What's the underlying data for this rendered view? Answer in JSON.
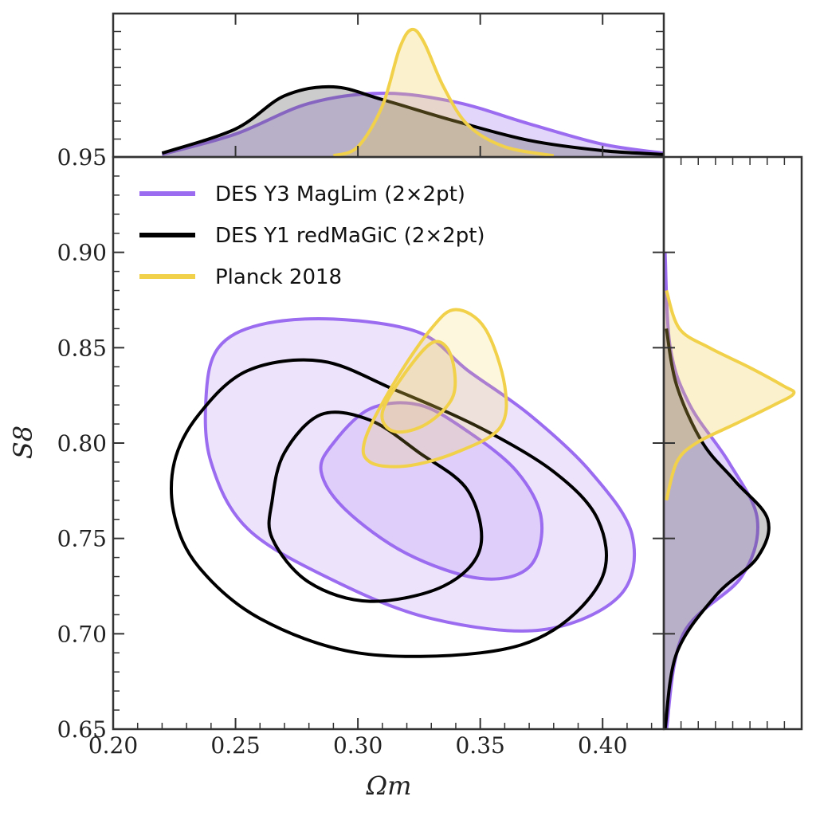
{
  "chart_data": {
    "type": "contour",
    "xlabel": "Ωm",
    "ylabel": "S8",
    "xlim": [
      0.2,
      0.425
    ],
    "ylim": [
      0.65,
      0.95
    ],
    "xticks": [
      "0.20",
      "0.25",
      "0.30",
      "0.35",
      "0.40"
    ],
    "yticks": [
      "0.65",
      "0.70",
      "0.75",
      "0.80",
      "0.85",
      "0.90",
      "0.95"
    ],
    "grid": false,
    "legend_position": "top-left",
    "series": [
      {
        "name": "DES Y3 MagLim (2×2pt)",
        "color": "#9b6cf0",
        "filled": true,
        "contours": [
          [
            [
              0.243,
              0.85
            ],
            [
              0.26,
              0.862
            ],
            [
              0.29,
              0.865
            ],
            [
              0.325,
              0.858
            ],
            [
              0.345,
              0.838
            ],
            [
              0.37,
              0.815
            ],
            [
              0.395,
              0.785
            ],
            [
              0.412,
              0.752
            ],
            [
              0.407,
              0.72
            ],
            [
              0.375,
              0.702
            ],
            [
              0.33,
              0.708
            ],
            [
              0.29,
              0.728
            ],
            [
              0.255,
              0.755
            ],
            [
              0.24,
              0.79
            ],
            [
              0.238,
              0.825
            ]
          ],
          [
            [
              0.29,
              0.8
            ],
            [
              0.305,
              0.818
            ],
            [
              0.325,
              0.82
            ],
            [
              0.345,
              0.806
            ],
            [
              0.365,
              0.785
            ],
            [
              0.375,
              0.76
            ],
            [
              0.37,
              0.735
            ],
            [
              0.35,
              0.729
            ],
            [
              0.32,
              0.742
            ],
            [
              0.295,
              0.765
            ],
            [
              0.285,
              0.785
            ]
          ]
        ],
        "marginal_omega_m": {
          "x": [
            0.22,
            0.25,
            0.28,
            0.31,
            0.34,
            0.37,
            0.4,
            0.425
          ],
          "y": [
            0.02,
            0.18,
            0.42,
            0.5,
            0.43,
            0.26,
            0.1,
            0.03
          ]
        },
        "marginal_s8": {
          "y": [
            0.65,
            0.7,
            0.73,
            0.76,
            0.79,
            0.82,
            0.85,
            0.9
          ],
          "x": [
            0.02,
            0.15,
            0.6,
            0.72,
            0.5,
            0.2,
            0.05,
            0.01
          ]
        }
      },
      {
        "name": "DES Y1 redMaGiC (2×2pt)",
        "color": "#000000",
        "filled": false,
        "contours": [
          [
            [
              0.225,
              0.79
            ],
            [
              0.235,
              0.815
            ],
            [
              0.255,
              0.838
            ],
            [
              0.285,
              0.843
            ],
            [
              0.315,
              0.828
            ],
            [
              0.35,
              0.808
            ],
            [
              0.38,
              0.785
            ],
            [
              0.398,
              0.76
            ],
            [
              0.4,
              0.73
            ],
            [
              0.38,
              0.702
            ],
            [
              0.35,
              0.69
            ],
            [
              0.3,
              0.69
            ],
            [
              0.26,
              0.708
            ],
            [
              0.235,
              0.735
            ],
            [
              0.225,
              0.762
            ]
          ],
          [
            [
              0.265,
              0.77
            ],
            [
              0.27,
              0.795
            ],
            [
              0.285,
              0.815
            ],
            [
              0.305,
              0.812
            ],
            [
              0.325,
              0.795
            ],
            [
              0.345,
              0.775
            ],
            [
              0.35,
              0.745
            ],
            [
              0.335,
              0.725
            ],
            [
              0.305,
              0.717
            ],
            [
              0.28,
              0.727
            ],
            [
              0.265,
              0.75
            ]
          ]
        ],
        "marginal_omega_m": {
          "x": [
            0.22,
            0.25,
            0.27,
            0.29,
            0.31,
            0.34,
            0.37,
            0.4,
            0.425
          ],
          "y": [
            0.03,
            0.22,
            0.48,
            0.55,
            0.45,
            0.28,
            0.13,
            0.05,
            0.02
          ]
        },
        "marginal_s8": {
          "y": [
            0.65,
            0.69,
            0.72,
            0.74,
            0.76,
            0.78,
            0.8,
            0.83,
            0.86
          ],
          "x": [
            0.01,
            0.1,
            0.4,
            0.72,
            0.8,
            0.55,
            0.3,
            0.1,
            0.02
          ]
        }
      },
      {
        "name": "Planck 2018",
        "color": "#f2d14a",
        "filled": true,
        "contours": [
          [
            [
              0.303,
              0.802
            ],
            [
              0.315,
              0.832
            ],
            [
              0.33,
              0.86
            ],
            [
              0.34,
              0.87
            ],
            [
              0.352,
              0.86
            ],
            [
              0.36,
              0.83
            ],
            [
              0.358,
              0.808
            ],
            [
              0.34,
              0.795
            ],
            [
              0.32,
              0.788
            ],
            [
              0.305,
              0.79
            ]
          ],
          [
            [
              0.31,
              0.816
            ],
            [
              0.32,
              0.838
            ],
            [
              0.331,
              0.853
            ],
            [
              0.338,
              0.846
            ],
            [
              0.339,
              0.825
            ],
            [
              0.328,
              0.81
            ],
            [
              0.315,
              0.806
            ]
          ]
        ],
        "marginal_omega_m": {
          "x": [
            0.29,
            0.3,
            0.31,
            0.317,
            0.322,
            0.327,
            0.335,
            0.345,
            0.36,
            0.38
          ],
          "y": [
            0.01,
            0.08,
            0.4,
            0.85,
            1.0,
            0.9,
            0.55,
            0.25,
            0.08,
            0.01
          ]
        },
        "marginal_s8": {
          "y": [
            0.77,
            0.79,
            0.8,
            0.81,
            0.82,
            0.826,
            0.83,
            0.84,
            0.85,
            0.86,
            0.88
          ],
          "x": [
            0.02,
            0.1,
            0.25,
            0.55,
            0.85,
            1.0,
            0.92,
            0.65,
            0.35,
            0.12,
            0.02
          ]
        }
      }
    ]
  }
}
